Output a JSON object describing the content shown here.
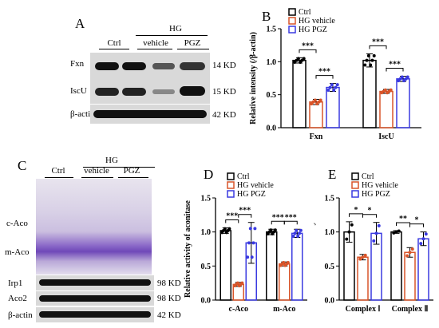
{
  "panelA": {
    "letter": "A",
    "group": "HG",
    "lanes": [
      "Ctrl",
      "vehicle",
      "PGZ"
    ],
    "rows": [
      {
        "label": "Fxn",
        "kd": "14 KD"
      },
      {
        "label": "IscU",
        "kd": "15 KD"
      },
      {
        "label": "β-actin",
        "kd": "42 KD"
      }
    ]
  },
  "panelC": {
    "letter": "C",
    "group": "HG",
    "lanes": [
      "Ctrl",
      "vehicle",
      "PGZ"
    ],
    "gel_labels": [
      "c-Aco",
      "m-Aco"
    ],
    "rows": [
      {
        "label": "Irp1",
        "kd": "98 KD"
      },
      {
        "label": "Aco2",
        "kd": "98 KD"
      },
      {
        "label": "β-actin",
        "kd": "42 KD"
      }
    ]
  },
  "colors": {
    "ctrl": "#000000",
    "vehicle": "#d9552a",
    "pgz": "#3a3ae0"
  },
  "chart_data": [
    {
      "letter": "B",
      "type": "bar",
      "ylabel": "Relative intensity (/β-actin)",
      "ylim": [
        0,
        1.5
      ],
      "yticks": [
        "0.0",
        "0.5",
        "1.0",
        "1.5"
      ],
      "categories": [
        "Fxn",
        "IscU"
      ],
      "series": [
        {
          "name": "Ctrl",
          "values": [
            1.02,
            1.02
          ],
          "err": [
            0.04,
            0.1
          ]
        },
        {
          "name": "HG vehicle",
          "values": [
            0.39,
            0.55
          ],
          "err": [
            0.04,
            0.03
          ]
        },
        {
          "name": "HG PGZ",
          "values": [
            0.61,
            0.74
          ],
          "err": [
            0.06,
            0.04
          ]
        }
      ],
      "significance": [
        "***",
        "***",
        "***",
        "***"
      ]
    },
    {
      "letter": "D",
      "type": "bar",
      "ylabel": "Relative activity of aconitase",
      "ylim": [
        0,
        1.5
      ],
      "yticks": [
        "0.0",
        "0.5",
        "1.0",
        "1.5"
      ],
      "categories": [
        "c-Aco",
        "m-Aco"
      ],
      "series": [
        {
          "name": "Ctrl",
          "values": [
            1.02,
            1.0
          ],
          "err": [
            0.04,
            0.04
          ]
        },
        {
          "name": "HG vehicle",
          "values": [
            0.23,
            0.53
          ],
          "err": [
            0.03,
            0.03
          ]
        },
        {
          "name": "HG PGZ",
          "values": [
            0.84,
            0.98
          ],
          "err": [
            0.3,
            0.06
          ]
        }
      ],
      "significance": [
        "***",
        "***",
        "***",
        "***"
      ]
    },
    {
      "letter": "E",
      "type": "bar",
      "ylabel": "Relative activity",
      "ylim": [
        0,
        1.5
      ],
      "yticks": [
        "0.0",
        "0.5",
        "1.0",
        "1.5"
      ],
      "categories": [
        "Complex Ⅰ",
        "Complex Ⅱ"
      ],
      "series": [
        {
          "name": "Ctrl",
          "values": [
            1.0,
            1.0
          ],
          "err": [
            0.15,
            0.02
          ]
        },
        {
          "name": "HG vehicle",
          "values": [
            0.63,
            0.7
          ],
          "err": [
            0.04,
            0.07
          ]
        },
        {
          "name": "HG PGZ",
          "values": [
            0.98,
            0.9
          ],
          "err": [
            0.16,
            0.1
          ]
        }
      ],
      "significance": [
        "*",
        "*",
        "**",
        "*"
      ]
    }
  ]
}
